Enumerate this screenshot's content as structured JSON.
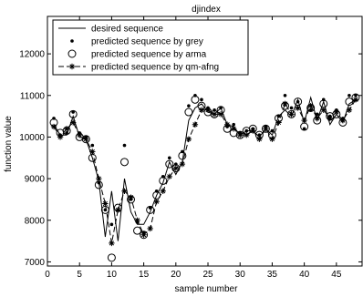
{
  "chart_data": {
    "type": "line",
    "title": "djindex",
    "xlabel": "sample number",
    "ylabel": "function value",
    "xlim": [
      0,
      49
    ],
    "ylim": [
      6900,
      12900
    ],
    "xticks": [
      0,
      5,
      10,
      15,
      20,
      25,
      30,
      35,
      40,
      45
    ],
    "yticks": [
      7000,
      8000,
      9000,
      10000,
      11000,
      12000
    ],
    "grid": false,
    "legend_position": "top-left",
    "series": [
      {
        "name": "desired sequence",
        "style": "solid-line",
        "x": [
          1,
          2,
          3,
          4,
          5,
          6,
          7,
          8,
          9,
          10,
          11,
          12,
          13,
          14,
          15,
          16,
          17,
          18,
          19,
          20,
          21,
          22,
          23,
          24,
          25,
          26,
          27,
          28,
          29,
          30,
          31,
          32,
          33,
          34,
          35,
          36,
          37,
          38,
          39,
          40,
          41,
          42,
          43,
          44,
          45,
          46,
          47,
          48
        ],
        "y": [
          10300,
          10050,
          10050,
          10500,
          10000,
          9950,
          9500,
          8950,
          7600,
          8700,
          7500,
          9000,
          8200,
          7900,
          7900,
          8200,
          8600,
          8900,
          9400,
          9100,
          9400,
          10400,
          10700,
          10800,
          10600,
          10550,
          10700,
          10300,
          10250,
          10050,
          10150,
          10150,
          10000,
          10200,
          10050,
          10500,
          10650,
          10500,
          10900,
          10350,
          10950,
          10400,
          10850,
          10300,
          10550,
          10350,
          10800,
          10900
        ]
      },
      {
        "name": "predicted sequence by grey",
        "style": "dots",
        "x": [
          1,
          2,
          3,
          4,
          5,
          6,
          7,
          8,
          9,
          10,
          11,
          12,
          13,
          14,
          15,
          16,
          17,
          18,
          19,
          20,
          21,
          22,
          23,
          24,
          25,
          26,
          27,
          28,
          29,
          30,
          31,
          32,
          33,
          34,
          35,
          36,
          37,
          38,
          39,
          40,
          41,
          42,
          43,
          44,
          45,
          46,
          47,
          48
        ],
        "y": [
          10450,
          10050,
          10100,
          10600,
          10100,
          10000,
          9800,
          8900,
          8250,
          7900,
          8250,
          9800,
          8500,
          7950,
          7700,
          8300,
          8700,
          9050,
          9500,
          9350,
          9650,
          10750,
          11000,
          10900,
          10700,
          10650,
          10700,
          10250,
          10300,
          10100,
          10150,
          10200,
          10050,
          10250,
          10150,
          10500,
          11000,
          10700,
          10850,
          10200,
          10650,
          10550,
          10900,
          10500,
          10650,
          10450,
          11000,
          11000
        ]
      },
      {
        "name": "predicted sequence by arma",
        "style": "circles",
        "x": [
          1,
          2,
          3,
          4,
          5,
          6,
          7,
          8,
          9,
          10,
          11,
          12,
          13,
          14,
          15,
          16,
          17,
          18,
          19,
          20,
          21,
          22,
          23,
          24,
          25,
          26,
          27,
          28,
          29,
          30,
          31,
          32,
          33,
          34,
          35,
          36,
          37,
          38,
          39,
          40,
          41,
          42,
          43,
          44,
          45,
          46,
          47,
          48
        ],
        "y": [
          10350,
          10100,
          10150,
          10550,
          10000,
          9950,
          9500,
          8850,
          8250,
          7100,
          8300,
          9400,
          8500,
          7750,
          7650,
          8250,
          8600,
          8950,
          9350,
          9250,
          9550,
          10600,
          10900,
          10750,
          10600,
          10550,
          10650,
          10200,
          10100,
          10050,
          10150,
          10200,
          10050,
          10200,
          10050,
          10450,
          10750,
          10550,
          10850,
          10250,
          10700,
          10400,
          10800,
          10500,
          10550,
          10350,
          10850,
          10950
        ]
      },
      {
        "name": "predicted sequence by qm-afng",
        "style": "dashed-line-stars",
        "x": [
          1,
          2,
          3,
          4,
          5,
          6,
          7,
          8,
          9,
          10,
          11,
          12,
          13,
          14,
          15,
          16,
          17,
          18,
          19,
          20,
          21,
          22,
          23,
          24,
          25,
          26,
          27,
          28,
          29,
          30,
          31,
          32,
          33,
          34,
          35,
          36,
          37,
          38,
          39,
          40,
          41,
          42,
          43,
          44,
          45,
          46,
          47,
          48
        ],
        "y": [
          10250,
          10000,
          10200,
          10350,
          10050,
          9950,
          9650,
          9000,
          8400,
          7450,
          8250,
          8700,
          8550,
          8000,
          7650,
          7800,
          8450,
          8700,
          9050,
          9250,
          9350,
          9950,
          10300,
          10650,
          10650,
          10550,
          10550,
          10300,
          10200,
          10050,
          10050,
          10150,
          9950,
          10200,
          9950,
          10350,
          10800,
          10550,
          10700,
          10400,
          10750,
          10450,
          10650,
          10450,
          10600,
          10400,
          10650,
          10900
        ]
      }
    ]
  }
}
